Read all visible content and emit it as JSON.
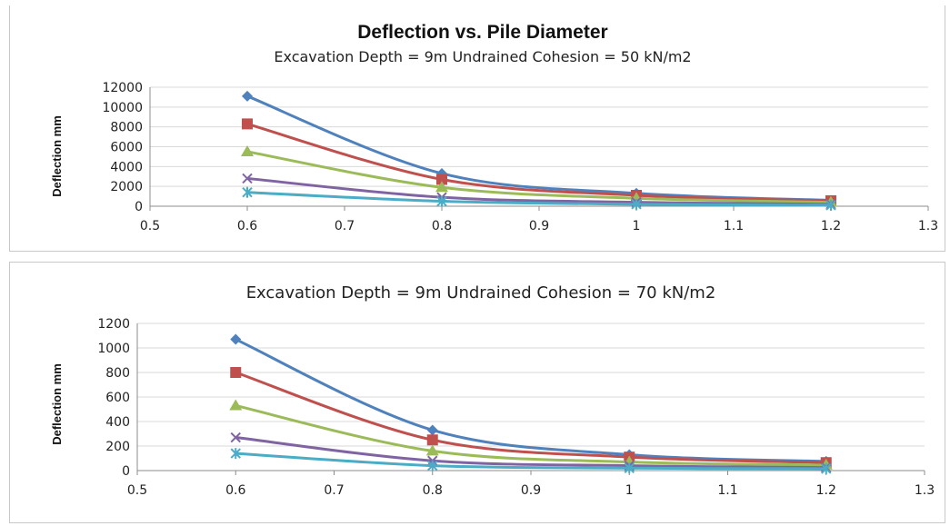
{
  "chart_data": [
    {
      "type": "line",
      "title": "Deflection vs. Pile Diameter",
      "subtitle": "Excavation Depth = 9m Undrained Cohesion = 50 kN/m2",
      "xlabel": "",
      "ylabel": "Deflection mm",
      "xlim": [
        0.5,
        1.3
      ],
      "ylim": [
        0,
        12000
      ],
      "x_ticks": [
        "0.5",
        "0.6",
        "0.7",
        "0.8",
        "0.9",
        "1",
        "1.1",
        "1.2",
        "1.3"
      ],
      "y_ticks": [
        "0",
        "2000",
        "4000",
        "6000",
        "8000",
        "10000",
        "12000"
      ],
      "grid": true,
      "x": [
        0.6,
        0.8,
        1.0,
        1.2
      ],
      "series": [
        {
          "color": "#4f81bd",
          "marker": "diamond",
          "values": [
            11100,
            3300,
            1300,
            600
          ]
        },
        {
          "color": "#c0504d",
          "marker": "square",
          "values": [
            8300,
            2700,
            1100,
            550
          ]
        },
        {
          "color": "#9bbb59",
          "marker": "triangle",
          "values": [
            5500,
            1900,
            800,
            400
          ]
        },
        {
          "color": "#8064a2",
          "marker": "x",
          "values": [
            2800,
            900,
            400,
            200
          ]
        },
        {
          "color": "#4bacc6",
          "marker": "star",
          "values": [
            1400,
            500,
            200,
            100
          ]
        }
      ]
    },
    {
      "type": "line",
      "title": "Excavation Depth = 9m Undrained Cohesion = 70 kN/m2",
      "xlabel": "",
      "ylabel": "Deflection mm",
      "xlim": [
        0.5,
        1.3
      ],
      "ylim": [
        0,
        1200
      ],
      "x_ticks": [
        "0.5",
        "0.6",
        "0.7",
        "0.8",
        "0.9",
        "1",
        "1.1",
        "1.2",
        "1.3"
      ],
      "y_ticks": [
        "0",
        "200",
        "400",
        "600",
        "800",
        "1000",
        "1200"
      ],
      "grid": true,
      "x": [
        0.6,
        0.8,
        1.0,
        1.2
      ],
      "series": [
        {
          "color": "#4f81bd",
          "marker": "diamond",
          "values": [
            1070,
            330,
            130,
            75
          ]
        },
        {
          "color": "#c0504d",
          "marker": "square",
          "values": [
            800,
            250,
            110,
            65
          ]
        },
        {
          "color": "#9bbb59",
          "marker": "triangle",
          "values": [
            530,
            160,
            70,
            45
          ]
        },
        {
          "color": "#8064a2",
          "marker": "x",
          "values": [
            270,
            80,
            40,
            25
          ]
        },
        {
          "color": "#4bacc6",
          "marker": "star",
          "values": [
            140,
            40,
            20,
            15
          ]
        }
      ]
    }
  ]
}
